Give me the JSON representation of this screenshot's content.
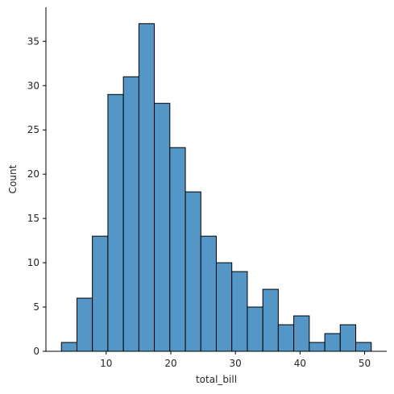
{
  "chart_data": {
    "type": "bar",
    "title": "",
    "xlabel": "total_bill",
    "ylabel": "Count",
    "bin_edges": [
      3.07,
      5.47,
      7.86,
      10.26,
      12.66,
      15.06,
      17.45,
      19.85,
      22.25,
      24.65,
      27.04,
      29.44,
      31.84,
      34.24,
      36.63,
      39.03,
      41.43,
      43.83,
      46.22,
      48.62,
      51.02
    ],
    "values": [
      1,
      6,
      13,
      29,
      31,
      37,
      28,
      23,
      18,
      13,
      10,
      9,
      5,
      7,
      3,
      4,
      1,
      2,
      3,
      1
    ],
    "xlim": [
      0.67,
      53.42
    ],
    "ylim": [
      0,
      38.85
    ],
    "x_ticks": [
      10,
      20,
      30,
      40,
      50
    ],
    "y_ticks": [
      0,
      5,
      10,
      15,
      20,
      25,
      30,
      35
    ],
    "grid": false,
    "spines": [
      "left",
      "bottom"
    ],
    "bar_color": "#5497c6",
    "edge_color": "#000000"
  }
}
